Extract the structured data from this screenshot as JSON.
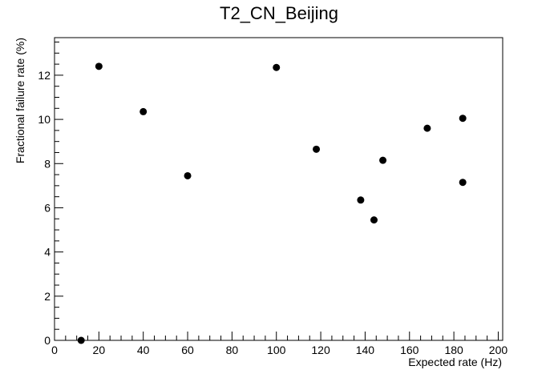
{
  "chart_data": {
    "type": "scatter",
    "title": "T2_CN_Beijing",
    "xlabel": "Expected rate (Hz)",
    "ylabel": "Fractional failure rate (%)",
    "xlim": [
      0,
      202
    ],
    "ylim": [
      0,
      13.7
    ],
    "x_ticks": [
      "0",
      "20",
      "40",
      "60",
      "80",
      "100",
      "120",
      "140",
      "160",
      "180",
      "200"
    ],
    "y_ticks": [
      "0",
      "2",
      "4",
      "6",
      "8",
      "10",
      "12"
    ],
    "x_tick_values": [
      0,
      20,
      40,
      60,
      80,
      100,
      120,
      140,
      160,
      180,
      200
    ],
    "y_tick_values": [
      0,
      2,
      4,
      6,
      8,
      10,
      12
    ],
    "grid": false,
    "series": [
      {
        "points": [
          {
            "x": 12,
            "y": 0.0
          },
          {
            "x": 20,
            "y": 12.4
          },
          {
            "x": 40,
            "y": 10.35
          },
          {
            "x": 60,
            "y": 7.45
          },
          {
            "x": 100,
            "y": 12.35
          },
          {
            "x": 118,
            "y": 8.65
          },
          {
            "x": 138,
            "y": 6.35
          },
          {
            "x": 144,
            "y": 5.45
          },
          {
            "x": 148,
            "y": 8.15
          },
          {
            "x": 168,
            "y": 9.6
          },
          {
            "x": 184,
            "y": 10.05
          },
          {
            "x": 184,
            "y": 7.15
          }
        ]
      }
    ]
  }
}
